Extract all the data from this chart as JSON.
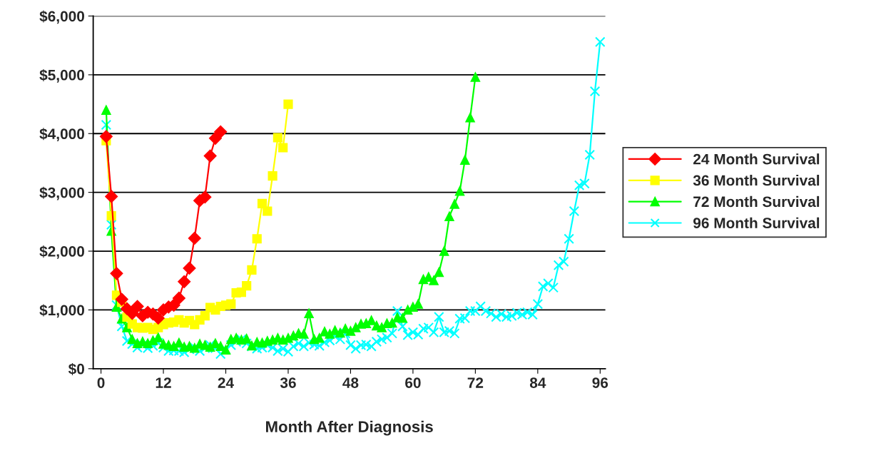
{
  "chart_data": {
    "type": "line",
    "xlabel": "Month After Diagnosis",
    "xlim": [
      -1.5,
      97
    ],
    "xticks": [
      0,
      12,
      24,
      36,
      48,
      60,
      72,
      84,
      96
    ],
    "ylim": [
      0,
      6000
    ],
    "yticks": [
      {
        "value": 0,
        "label": "$0"
      },
      {
        "value": 1000,
        "label": "$1,000"
      },
      {
        "value": 2000,
        "label": "$2,000"
      },
      {
        "value": 3000,
        "label": "$3,000"
      },
      {
        "value": 4000,
        "label": "$4,000"
      },
      {
        "value": 5000,
        "label": "$5,000"
      },
      {
        "value": 6000,
        "label": "$6,000"
      }
    ],
    "grid": "y",
    "legend": "right",
    "series": [
      {
        "name": "24 Month Survival",
        "color": "#ff0000",
        "marker": "diamond",
        "x": [
          1,
          2,
          3,
          4,
          5,
          6,
          7,
          8,
          9,
          10,
          11,
          12,
          13,
          14,
          15,
          16,
          17,
          18,
          19,
          20,
          21,
          22,
          23
        ],
        "values": [
          3950,
          2930,
          1620,
          1180,
          1020,
          940,
          1060,
          900,
          960,
          930,
          860,
          1000,
          1050,
          1080,
          1200,
          1480,
          1710,
          2220,
          2860,
          2920,
          3620,
          3920,
          4030
        ]
      },
      {
        "name": "36 Month Survival",
        "color": "#ffff00",
        "marker": "square",
        "x": [
          1,
          2,
          3,
          4,
          5,
          6,
          7,
          8,
          9,
          10,
          11,
          12,
          13,
          14,
          15,
          16,
          17,
          18,
          19,
          20,
          21,
          22,
          23,
          24,
          25,
          26,
          27,
          28,
          29,
          30,
          31,
          32,
          33,
          34,
          35,
          36
        ],
        "values": [
          3880,
          2600,
          1250,
          1130,
          880,
          760,
          700,
          690,
          700,
          670,
          700,
          750,
          780,
          790,
          830,
          780,
          820,
          750,
          830,
          900,
          1040,
          1000,
          1060,
          1080,
          1100,
          1290,
          1300,
          1410,
          1680,
          2210,
          2810,
          2680,
          3280,
          3930,
          3760,
          4500
        ]
      },
      {
        "name": "72 Month Survival",
        "color": "#00ff00",
        "marker": "triangle",
        "x": [
          1,
          2,
          3,
          4,
          5,
          6,
          7,
          8,
          9,
          10,
          11,
          12,
          13,
          14,
          15,
          16,
          17,
          18,
          19,
          20,
          21,
          22,
          23,
          24,
          25,
          26,
          27,
          28,
          29,
          30,
          31,
          32,
          33,
          34,
          35,
          36,
          37,
          38,
          39,
          40,
          41,
          42,
          43,
          44,
          45,
          46,
          47,
          48,
          49,
          50,
          51,
          52,
          53,
          54,
          55,
          56,
          57,
          58,
          59,
          60,
          61,
          62,
          63,
          64,
          65,
          66,
          67,
          68,
          69,
          70,
          71,
          72
        ],
        "values": [
          4400,
          2340,
          1050,
          850,
          700,
          500,
          430,
          460,
          430,
          480,
          530,
          420,
          400,
          380,
          440,
          370,
          380,
          350,
          420,
          400,
          370,
          430,
          380,
          320,
          500,
          520,
          490,
          510,
          390,
          450,
          440,
          470,
          490,
          520,
          490,
          520,
          560,
          600,
          590,
          940,
          500,
          520,
          630,
          590,
          650,
          610,
          680,
          640,
          700,
          760,
          770,
          820,
          730,
          700,
          770,
          780,
          870,
          860,
          1000,
          1050,
          1100,
          1520,
          1560,
          1500,
          1640,
          2000,
          2590,
          2800,
          3020,
          3550,
          4270,
          4960
        ]
      },
      {
        "name": "96 Month Survival",
        "color": "#00ffff",
        "marker": "cross",
        "x": [
          1,
          2,
          3,
          4,
          5,
          6,
          7,
          8,
          9,
          10,
          11,
          12,
          13,
          14,
          15,
          16,
          17,
          18,
          19,
          20,
          21,
          22,
          23,
          24,
          25,
          26,
          27,
          28,
          29,
          30,
          31,
          32,
          33,
          34,
          35,
          36,
          37,
          38,
          39,
          40,
          41,
          42,
          43,
          44,
          45,
          46,
          47,
          48,
          49,
          50,
          51,
          52,
          53,
          54,
          55,
          56,
          57,
          58,
          59,
          60,
          61,
          62,
          63,
          64,
          65,
          66,
          67,
          68,
          69,
          70,
          71,
          72,
          73,
          74,
          75,
          76,
          77,
          78,
          79,
          80,
          81,
          82,
          83,
          84,
          85,
          86,
          87,
          88,
          89,
          90,
          91,
          92,
          93,
          94,
          95,
          96
        ],
        "values": [
          4150,
          2450,
          1080,
          720,
          470,
          420,
          360,
          400,
          350,
          390,
          440,
          360,
          300,
          310,
          300,
          280,
          330,
          360,
          300,
          350,
          400,
          350,
          250,
          330,
          400,
          460,
          500,
          430,
          380,
          340,
          360,
          400,
          360,
          300,
          340,
          290,
          380,
          430,
          380,
          440,
          410,
          390,
          450,
          480,
          550,
          500,
          600,
          400,
          340,
          400,
          410,
          380,
          460,
          500,
          530,
          600,
          980,
          720,
          570,
          620,
          580,
          680,
          700,
          620,
          880,
          620,
          640,
          600,
          850,
          860,
          980,
          980,
          1060,
          980,
          940,
          880,
          930,
          880,
          900,
          950,
          920,
          960,
          920,
          1100,
          1400,
          1450,
          1380,
          1760,
          1820,
          2210,
          2680,
          3120,
          3150,
          3640,
          4720,
          5560
        ]
      }
    ]
  }
}
